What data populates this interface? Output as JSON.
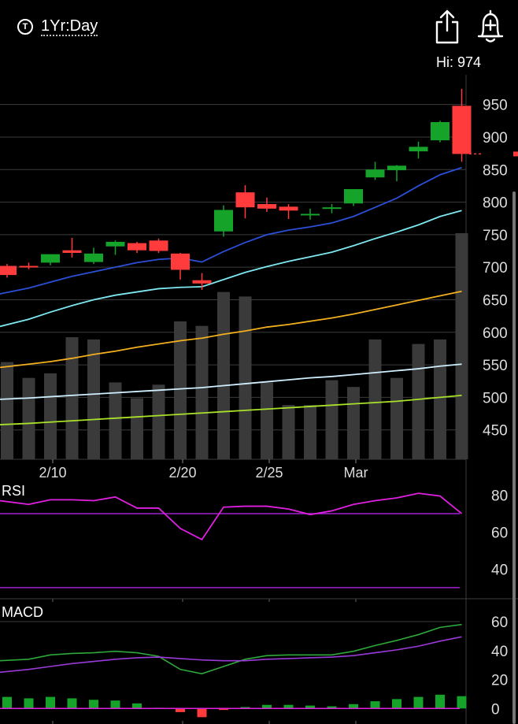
{
  "header": {
    "range_icon_letter": "T",
    "range_label": "1Yr:Day",
    "hi_label": "Hi: 974",
    "share_icon": "share-icon",
    "alert_icon": "add-alert-bell-icon"
  },
  "colors": {
    "background": "#000000",
    "up": "#15a32a",
    "down": "#ff3b3b",
    "volume": "#3a3a3a",
    "ma_short": "#2b4fd6",
    "ma_mid": "#7ee8f0",
    "ma_long": "#f2b01e",
    "ma_xlong": "#cfefff",
    "ma_xxlong": "#a8e02a",
    "rsi": "#e020e0",
    "rsi_band": "#a020d0",
    "macd": "#2ea83a",
    "macd_signal": "#9a3ad8",
    "grid": "#3c3c3c",
    "text": "#ffffff",
    "axis_text": "#dddddd"
  },
  "chart_data": [
    {
      "type": "candlestick",
      "title": "",
      "price_ticks": [
        950,
        900,
        850,
        800,
        750,
        700,
        650,
        600,
        550,
        500,
        450
      ],
      "ylim": [
        400,
        975
      ],
      "x_labels": [
        {
          "label": "2/10",
          "index": 2
        },
        {
          "label": "2/20",
          "index": 8
        },
        {
          "label": "2/25",
          "index": 12
        },
        {
          "label": "Mar",
          "index": 16
        }
      ],
      "candles": [
        {
          "o": 702,
          "h": 705,
          "l": 684,
          "c": 688
        },
        {
          "o": 702,
          "h": 707,
          "l": 697,
          "c": 700
        },
        {
          "o": 707,
          "h": 720,
          "l": 703,
          "c": 720
        },
        {
          "o": 726,
          "h": 745,
          "l": 715,
          "c": 722
        },
        {
          "o": 708,
          "h": 730,
          "l": 705,
          "c": 721
        },
        {
          "o": 732,
          "h": 741,
          "l": 719,
          "c": 739
        },
        {
          "o": 737,
          "h": 739,
          "l": 722,
          "c": 726
        },
        {
          "o": 741,
          "h": 744,
          "l": 722,
          "c": 725
        },
        {
          "o": 721,
          "h": 722,
          "l": 681,
          "c": 696
        },
        {
          "o": 680,
          "h": 691,
          "l": 665,
          "c": 675
        },
        {
          "o": 755,
          "h": 795,
          "l": 747,
          "c": 788
        },
        {
          "o": 815,
          "h": 826,
          "l": 775,
          "c": 792
        },
        {
          "o": 797,
          "h": 807,
          "l": 785,
          "c": 790
        },
        {
          "o": 793,
          "h": 797,
          "l": 774,
          "c": 787
        },
        {
          "o": 780,
          "h": 790,
          "l": 773,
          "c": 782
        },
        {
          "o": 790,
          "h": 797,
          "l": 783,
          "c": 792
        },
        {
          "o": 798,
          "h": 820,
          "l": 794,
          "c": 820
        },
        {
          "o": 838,
          "h": 862,
          "l": 834,
          "c": 850
        },
        {
          "o": 849,
          "h": 857,
          "l": 832,
          "c": 856
        },
        {
          "o": 878,
          "h": 893,
          "l": 867,
          "c": 885
        },
        {
          "o": 895,
          "h": 925,
          "l": 892,
          "c": 923
        },
        {
          "o": 948,
          "h": 974,
          "l": 862,
          "c": 874
        }
      ],
      "last_price": 874,
      "volume_relative": [
        0.43,
        0.36,
        0.38,
        0.54,
        0.53,
        0.34,
        0.27,
        0.33,
        0.61,
        0.59,
        0.74,
        0.72,
        0.34,
        0.24,
        0.24,
        0.35,
        0.32,
        0.53,
        0.36,
        0.51,
        0.53,
        1.0
      ],
      "moving_averages": [
        {
          "key": "ma_short",
          "values": [
            659,
            668,
            677,
            686,
            693,
            700,
            707,
            712,
            714,
            708,
            724,
            738,
            750,
            757,
            762,
            768,
            778,
            792,
            806,
            825,
            842,
            853
          ]
        },
        {
          "key": "ma_mid",
          "values": [
            609,
            620,
            631,
            641,
            650,
            657,
            662,
            667,
            669,
            670,
            681,
            692,
            701,
            709,
            716,
            723,
            733,
            744,
            754,
            765,
            778,
            787
          ]
        },
        {
          "key": "ma_long",
          "values": [
            546,
            551,
            555,
            560,
            566,
            571,
            577,
            582,
            587,
            591,
            597,
            602,
            608,
            612,
            617,
            622,
            628,
            635,
            642,
            649,
            656,
            663
          ]
        },
        {
          "key": "ma_xlong",
          "values": [
            497,
            499,
            501,
            503,
            505,
            507,
            509,
            511,
            513,
            515,
            518,
            521,
            524,
            527,
            530,
            532,
            535,
            538,
            541,
            544,
            548,
            551
          ]
        },
        {
          "key": "ma_xxlong",
          "values": [
            458,
            460,
            462,
            464,
            466,
            468,
            470,
            472,
            474,
            476,
            478,
            480,
            482,
            484,
            486,
            488,
            490,
            492,
            494,
            497,
            500,
            503
          ]
        }
      ]
    },
    {
      "type": "line",
      "title": "RSI",
      "ticks": [
        80,
        60,
        40
      ],
      "ylim": [
        24,
        90
      ],
      "bands": [
        70,
        30
      ],
      "series": [
        {
          "key": "rsi",
          "values": [
            77,
            75,
            77.5,
            77.5,
            77,
            79,
            73,
            73,
            62,
            56,
            73.5,
            74,
            74,
            72.5,
            69.5,
            71.5,
            75,
            77,
            78.5,
            81,
            79.5,
            70
          ]
        }
      ]
    },
    {
      "type": "bar-line",
      "title": "MACD",
      "ticks": [
        60,
        40,
        20,
        0
      ],
      "ylim": [
        -8,
        66
      ],
      "series": [
        {
          "key": "macd",
          "values": [
            33,
            34,
            37,
            38,
            38.5,
            39.5,
            38.5,
            36,
            27,
            24,
            29,
            34,
            36.5,
            37,
            37,
            37,
            39.5,
            43.5,
            47,
            51,
            56,
            58
          ]
        },
        {
          "key": "macd_signal",
          "values": [
            25,
            27,
            29,
            31,
            32.5,
            34,
            35,
            35.5,
            34.5,
            33.5,
            33,
            33,
            34,
            34.5,
            35,
            35.5,
            36.5,
            38.5,
            40.5,
            43,
            46.5,
            49.5
          ]
        },
        {
          "key": "macd_histogram",
          "values": [
            8,
            7,
            8,
            7,
            6,
            5.5,
            3.5,
            0.5,
            -2.5,
            -6,
            -1,
            1,
            2.5,
            2.5,
            2,
            1.5,
            3,
            5,
            6.5,
            8,
            9.5,
            8.5
          ]
        }
      ]
    }
  ]
}
